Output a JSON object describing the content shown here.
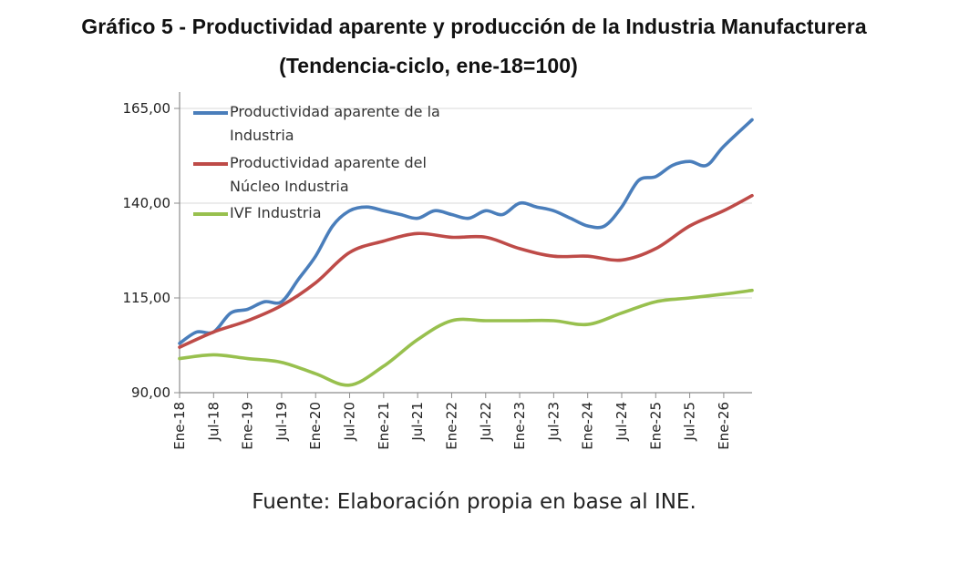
{
  "title": "Gráfico 5 - Productividad aparente y producción de la Industria Manufacturera",
  "subtitle": "(Tendencia-ciclo, ene-18=100)",
  "source": "Fuente: Elaboración propia en base al INE.",
  "colors": {
    "s0": "#4a7ebb",
    "s1": "#be4b48",
    "s2": "#98c04e",
    "grid": "#d9d9d9",
    "axis": "#8c8c8c"
  },
  "chart_data": {
    "type": "line",
    "xlabel": "",
    "ylabel": "",
    "ylim": [
      90,
      165
    ],
    "yticks": [
      "165,00",
      "140,00",
      "115,00",
      "90,00"
    ],
    "ytick_values": [
      165,
      140,
      115,
      90
    ],
    "grid": true,
    "legend_position": "top-left",
    "x_tick_labels": [
      "Ene-18",
      "Jul-18",
      "Ene-19",
      "Jul-19",
      "Ene-20",
      "Jul-20",
      "Ene-21",
      "Jul-21",
      "Ene-22",
      "Jul-22",
      "Ene-23",
      "Jul-23",
      "Ene-24",
      "Jul-24",
      "Ene-25",
      "Jul-25",
      "Ene-26"
    ],
    "x_range": [
      "2018-01",
      "2026-06"
    ],
    "series": [
      {
        "name": "Productividad aparente de la Industria",
        "points": [
          [
            "2018-01",
            103
          ],
          [
            "2018-04",
            106
          ],
          [
            "2018-07",
            106
          ],
          [
            "2018-10",
            111
          ],
          [
            "2019-01",
            112
          ],
          [
            "2019-04",
            114
          ],
          [
            "2019-07",
            114
          ],
          [
            "2019-10",
            120
          ],
          [
            "2020-01",
            126
          ],
          [
            "2020-04",
            134
          ],
          [
            "2020-07",
            138
          ],
          [
            "2020-10",
            139
          ],
          [
            "2021-01",
            138
          ],
          [
            "2021-04",
            137
          ],
          [
            "2021-07",
            136
          ],
          [
            "2021-10",
            138
          ],
          [
            "2022-01",
            137
          ],
          [
            "2022-04",
            136
          ],
          [
            "2022-07",
            138
          ],
          [
            "2022-10",
            137
          ],
          [
            "2023-01",
            140
          ],
          [
            "2023-04",
            139
          ],
          [
            "2023-07",
            138
          ],
          [
            "2023-10",
            136
          ],
          [
            "2024-01",
            134
          ],
          [
            "2024-04",
            134
          ],
          [
            "2024-07",
            139
          ],
          [
            "2024-10",
            146
          ],
          [
            "2025-01",
            147
          ],
          [
            "2025-04",
            150
          ],
          [
            "2025-07",
            151
          ],
          [
            "2025-10",
            150
          ],
          [
            "2026-01",
            155
          ],
          [
            "2026-06",
            162
          ]
        ]
      },
      {
        "name": "Productividad aparente del Núcleo Industria",
        "points": [
          [
            "2018-01",
            102
          ],
          [
            "2018-07",
            106
          ],
          [
            "2019-01",
            109
          ],
          [
            "2019-07",
            113
          ],
          [
            "2020-01",
            119
          ],
          [
            "2020-07",
            127
          ],
          [
            "2021-01",
            130
          ],
          [
            "2021-07",
            132
          ],
          [
            "2022-01",
            131
          ],
          [
            "2022-07",
            131
          ],
          [
            "2023-01",
            128
          ],
          [
            "2023-07",
            126
          ],
          [
            "2024-01",
            126
          ],
          [
            "2024-07",
            125
          ],
          [
            "2025-01",
            128
          ],
          [
            "2025-07",
            134
          ],
          [
            "2026-01",
            138
          ],
          [
            "2026-06",
            142
          ]
        ]
      },
      {
        "name": "IVF Industria",
        "points": [
          [
            "2018-01",
            99
          ],
          [
            "2018-07",
            100
          ],
          [
            "2019-01",
            99
          ],
          [
            "2019-07",
            98
          ],
          [
            "2020-01",
            95
          ],
          [
            "2020-07",
            92
          ],
          [
            "2021-01",
            97
          ],
          [
            "2021-07",
            104
          ],
          [
            "2022-01",
            109
          ],
          [
            "2022-07",
            109
          ],
          [
            "2023-01",
            109
          ],
          [
            "2023-07",
            109
          ],
          [
            "2024-01",
            108
          ],
          [
            "2024-07",
            111
          ],
          [
            "2025-01",
            114
          ],
          [
            "2025-07",
            115
          ],
          [
            "2026-01",
            116
          ],
          [
            "2026-06",
            117
          ]
        ]
      }
    ]
  }
}
